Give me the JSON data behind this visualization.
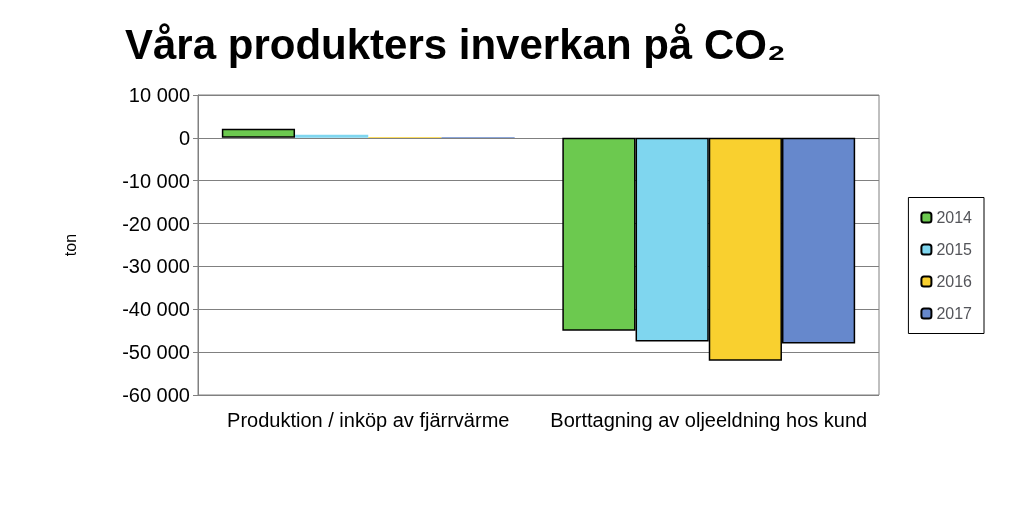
{
  "chart_data": {
    "type": "bar",
    "title": "Våra produkters inverkan på CO₂",
    "ylabel": "ton",
    "categories": [
      "Produktion / inköp av fjärrvärme",
      "Borttagning av oljeeldning hos kund"
    ],
    "series": [
      {
        "name": "2014",
        "color": "#6cc94f",
        "values": [
          2100,
          -45000
        ]
      },
      {
        "name": "2015",
        "color": "#7fd6ef",
        "values": [
          700,
          -47500
        ]
      },
      {
        "name": "2016",
        "color": "#f9d02f",
        "values": [
          200,
          -52000
        ]
      },
      {
        "name": "2017",
        "color": "#6688cc",
        "values": [
          200,
          -48000
        ]
      }
    ],
    "ylim": [
      -60000,
      10000
    ],
    "yticks": [
      {
        "value": -60000,
        "label": "-60 000"
      },
      {
        "value": -50000,
        "label": "-50 000"
      },
      {
        "value": -40000,
        "label": "-40 000"
      },
      {
        "value": -30000,
        "label": "-30 000"
      },
      {
        "value": -20000,
        "label": "-20 000"
      },
      {
        "value": -10000,
        "label": "-10 000"
      },
      0,
      {
        "value": 10000,
        "label": "10 000"
      }
    ],
    "grid": "y",
    "legend": "right"
  }
}
